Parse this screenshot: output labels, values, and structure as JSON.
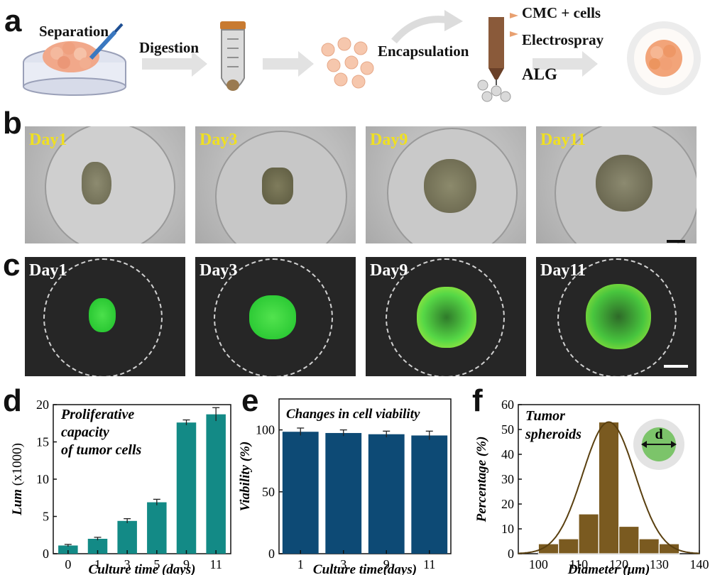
{
  "panel_labels": [
    "a",
    "b",
    "c",
    "d",
    "e",
    "f"
  ],
  "panel_a": {
    "separation": "Separation",
    "digestion": "Digestion",
    "encapsulation": "Encapsulation",
    "cmc_cells": "CMC + cells",
    "electrospray": "Electrospray",
    "alg": "ALG"
  },
  "panel_b": {
    "days": [
      "Day1",
      "Day3",
      "Day9",
      "Day11"
    ],
    "label_color": "#f0e020"
  },
  "panel_c": {
    "days": [
      "Day1",
      "Day3",
      "Day9",
      "Day11"
    ],
    "label_color": "#ffffff"
  },
  "colors": {
    "teal": "#138a86",
    "navy": "#0d4a75",
    "brown": "#7a5a20",
    "curve": "#5a4010"
  },
  "chart_data": [
    {
      "type": "bar",
      "title": "Proliferative capacity of tumor cells",
      "title_lines": [
        "Proliferative",
        "capacity",
        "of tumor cells"
      ],
      "xlabel": "Culture time (days)",
      "ylabel": "Lum",
      "ylabel_unit": "(x1000)",
      "categories": [
        "0",
        "1",
        "3",
        "5",
        "9",
        "11"
      ],
      "values": [
        1.1,
        2.0,
        4.4,
        6.9,
        17.6,
        18.7
      ],
      "errors": [
        0.15,
        0.2,
        0.3,
        0.4,
        0.35,
        0.9
      ],
      "ylim": [
        0,
        20
      ],
      "yticks": [
        0,
        5,
        10,
        15,
        20
      ]
    },
    {
      "type": "bar",
      "title": "Changes in cell viability",
      "xlabel": "Culture time(days)",
      "ylabel": "Viability (%)",
      "categories": [
        "1",
        "3",
        "9",
        "11"
      ],
      "values": [
        98.5,
        97.5,
        96.5,
        95.5
      ],
      "errors": [
        3.0,
        2.5,
        2.5,
        3.5
      ],
      "ylim": [
        0,
        125
      ],
      "yticks": [
        0,
        50,
        100
      ]
    },
    {
      "type": "bar",
      "title": "Tumor spheroids",
      "title_lines": [
        "Tumor",
        "spheroids"
      ],
      "xlabel": "Diameter (μm)",
      "ylabel": "Percentage (%)",
      "inset_label": "d",
      "bin_edges": [
        100,
        105,
        110,
        115,
        120,
        125,
        130,
        135
      ],
      "values": [
        4,
        6,
        16,
        53,
        11,
        6,
        4
      ],
      "fit_curve": {
        "type": "gaussian",
        "mean": 117.5,
        "sd": 6.5,
        "peak": 53
      },
      "xlim": [
        95,
        140
      ],
      "ylim": [
        0,
        60
      ],
      "xticks": [
        100,
        110,
        120,
        130,
        140
      ],
      "yticks": [
        0,
        10,
        20,
        30,
        40,
        50,
        60
      ]
    }
  ]
}
